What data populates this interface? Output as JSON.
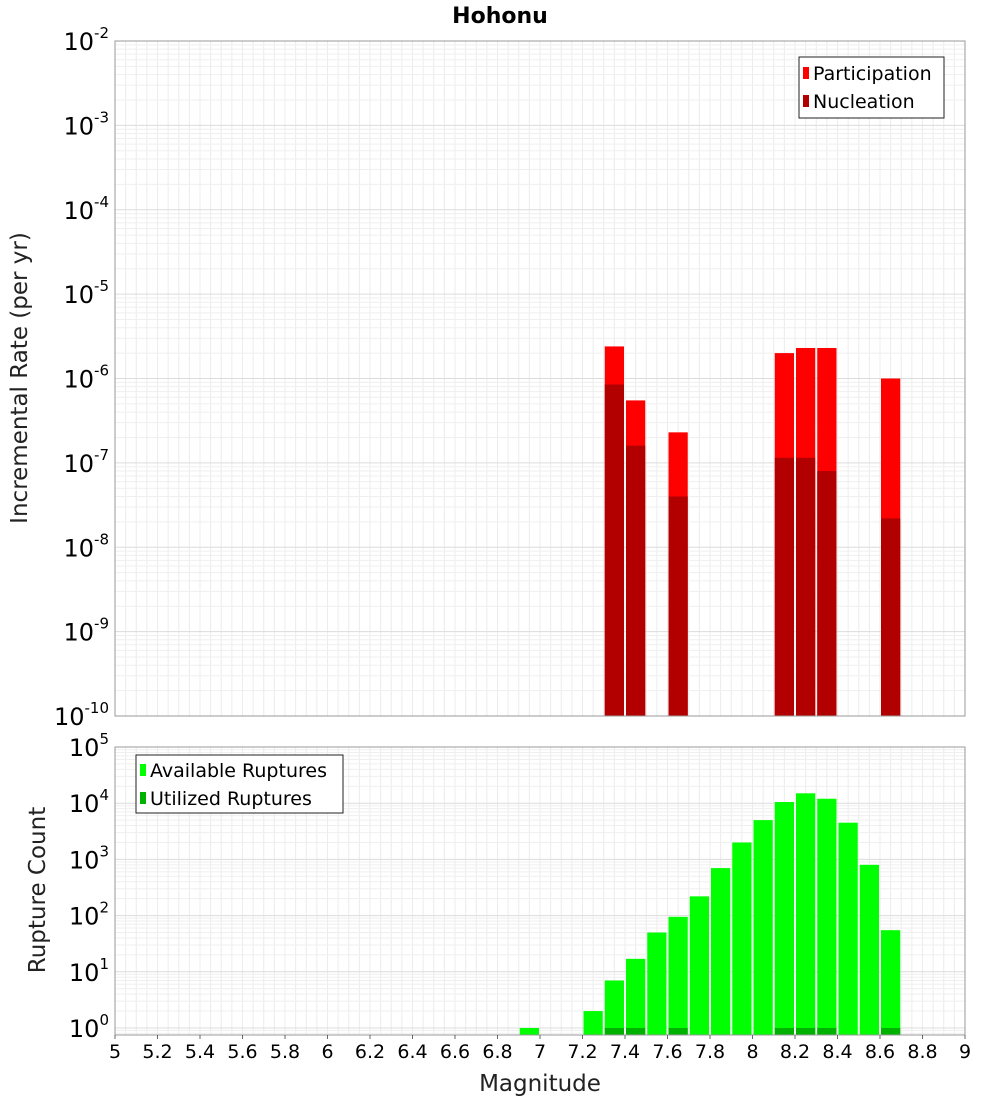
{
  "chart_data": [
    {
      "type": "bar",
      "title": "Hohonu",
      "ylabel": "Incremental Rate (per yr)",
      "xlabel": "",
      "xlim": [
        5,
        9
      ],
      "ylim": [
        1e-10,
        0.01
      ],
      "yscale": "log",
      "bin_width": 0.1,
      "grid": true,
      "legend_position": "top-right",
      "yticks": [
        {
          "base": "10",
          "exp": "-2",
          "value": 0.01
        },
        {
          "base": "10",
          "exp": "-3",
          "value": 0.001
        },
        {
          "base": "10",
          "exp": "-4",
          "value": 0.0001
        },
        {
          "base": "10",
          "exp": "-5",
          "value": 1e-05
        },
        {
          "base": "10",
          "exp": "-6",
          "value": 1e-06
        },
        {
          "base": "10",
          "exp": "-7",
          "value": 1e-07
        },
        {
          "base": "10",
          "exp": "-8",
          "value": 1e-08
        },
        {
          "base": "10",
          "exp": "-9",
          "value": 1e-09
        },
        {
          "base": "10",
          "exp": "-10",
          "value": 1e-10
        }
      ],
      "series": [
        {
          "name": "Participation",
          "color": "#ff0000",
          "x": [
            7.35,
            7.45,
            7.65,
            8.15,
            8.25,
            8.35,
            8.65
          ],
          "values": [
            2.4e-06,
            5.5e-07,
            2.3e-07,
            2e-06,
            2.3e-06,
            2.3e-06,
            1e-06
          ]
        },
        {
          "name": "Nucleation",
          "color": "#b20000",
          "x": [
            7.35,
            7.45,
            7.65,
            8.15,
            8.25,
            8.35,
            8.65
          ],
          "values": [
            8.5e-07,
            1.6e-07,
            4e-08,
            1.15e-07,
            1.15e-07,
            8e-08,
            2.2e-08
          ]
        }
      ]
    },
    {
      "type": "bar",
      "title": "",
      "ylabel": "Rupture Count",
      "xlabel": "Magnitude",
      "xlim": [
        5,
        9
      ],
      "ylim": [
        0.75,
        100000
      ],
      "yscale": "log",
      "bin_width": 0.1,
      "grid": true,
      "legend_position": "top-left",
      "xticks": [
        "5",
        "5.2",
        "5.4",
        "5.6",
        "5.8",
        "6",
        "6.2",
        "6.4",
        "6.6",
        "6.8",
        "7",
        "7.2",
        "7.4",
        "7.6",
        "7.8",
        "8",
        "8.2",
        "8.4",
        "8.6",
        "8.8",
        "9"
      ],
      "yticks": [
        {
          "base": "10",
          "exp": "5",
          "value": 100000
        },
        {
          "base": "10",
          "exp": "4",
          "value": 10000
        },
        {
          "base": "10",
          "exp": "3",
          "value": 1000
        },
        {
          "base": "10",
          "exp": "2",
          "value": 100
        },
        {
          "base": "10",
          "exp": "1",
          "value": 10
        },
        {
          "base": "10",
          "exp": "0",
          "value": 1
        }
      ],
      "series": [
        {
          "name": "Available Ruptures",
          "color": "#00ff00",
          "x": [
            6.95,
            7.25,
            7.35,
            7.45,
            7.55,
            7.65,
            7.75,
            7.85,
            7.95,
            8.05,
            8.15,
            8.25,
            8.35,
            8.45,
            8.55,
            8.65
          ],
          "values": [
            1,
            2,
            7,
            17,
            50,
            95,
            220,
            700,
            2000,
            5000,
            10500,
            15000,
            12000,
            4500,
            800,
            55
          ]
        },
        {
          "name": "Utilized Ruptures",
          "color": "#00b200",
          "x": [
            7.35,
            7.45,
            7.65,
            8.15,
            8.25,
            8.35,
            8.65
          ],
          "values": [
            1,
            1,
            1,
            1,
            1,
            1,
            1
          ]
        }
      ]
    }
  ]
}
